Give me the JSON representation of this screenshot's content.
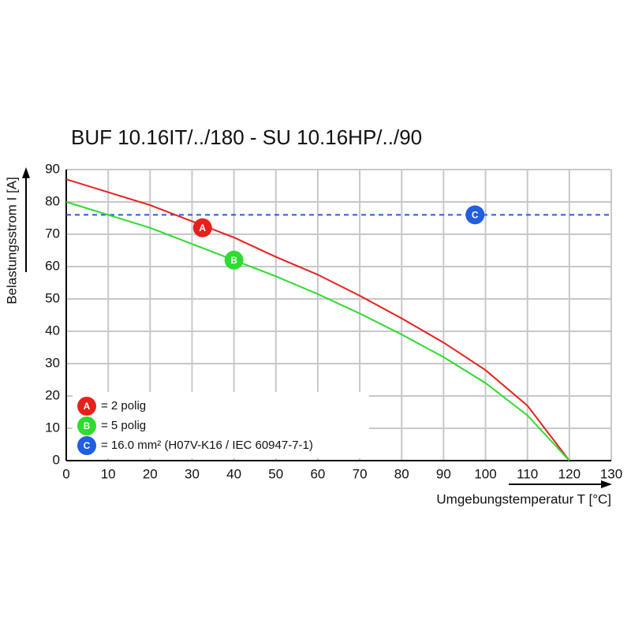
{
  "chart_data": {
    "type": "line",
    "title": "BUF 10.16IT/../180 - SU 10.16HP/../90",
    "x_label": "Umgebungstemperatur T [°C]",
    "y_label": "Belastungsstrom I [A]",
    "x": [
      0,
      10,
      20,
      30,
      40,
      50,
      60,
      70,
      80,
      90,
      100,
      110,
      120
    ],
    "series": [
      {
        "name": "= 2 polig",
        "marker": "A",
        "color": "#e8201c",
        "values": [
          87,
          83,
          79,
          74,
          69,
          63,
          57.5,
          51,
          44,
          36.5,
          28,
          17,
          0
        ],
        "label_point": {
          "x": 32.5,
          "y": 72
        }
      },
      {
        "name": "= 5 polig",
        "marker": "B",
        "color": "#2edc2e",
        "values": [
          80,
          76,
          72,
          67,
          62,
          57,
          51.5,
          45.5,
          39,
          32,
          24,
          14,
          0
        ],
        "label_point": {
          "x": 40,
          "y": 62
        }
      }
    ],
    "reference_line": {
      "name": "= 16.0 mm² (H07V-K16 / IEC 60947-7-1)",
      "marker": "C",
      "color": "#1f5fe0",
      "value": 76,
      "dashed": true,
      "label_point": {
        "x": 97.5,
        "y": 76
      }
    },
    "xlim": [
      0,
      130
    ],
    "xticks": [
      0,
      10,
      20,
      30,
      40,
      50,
      60,
      70,
      80,
      90,
      100,
      110,
      120,
      130
    ],
    "ylim": [
      0,
      90
    ],
    "yticks": [
      0,
      10,
      20,
      30,
      40,
      50,
      60,
      70,
      80,
      90
    ],
    "grid": true
  }
}
